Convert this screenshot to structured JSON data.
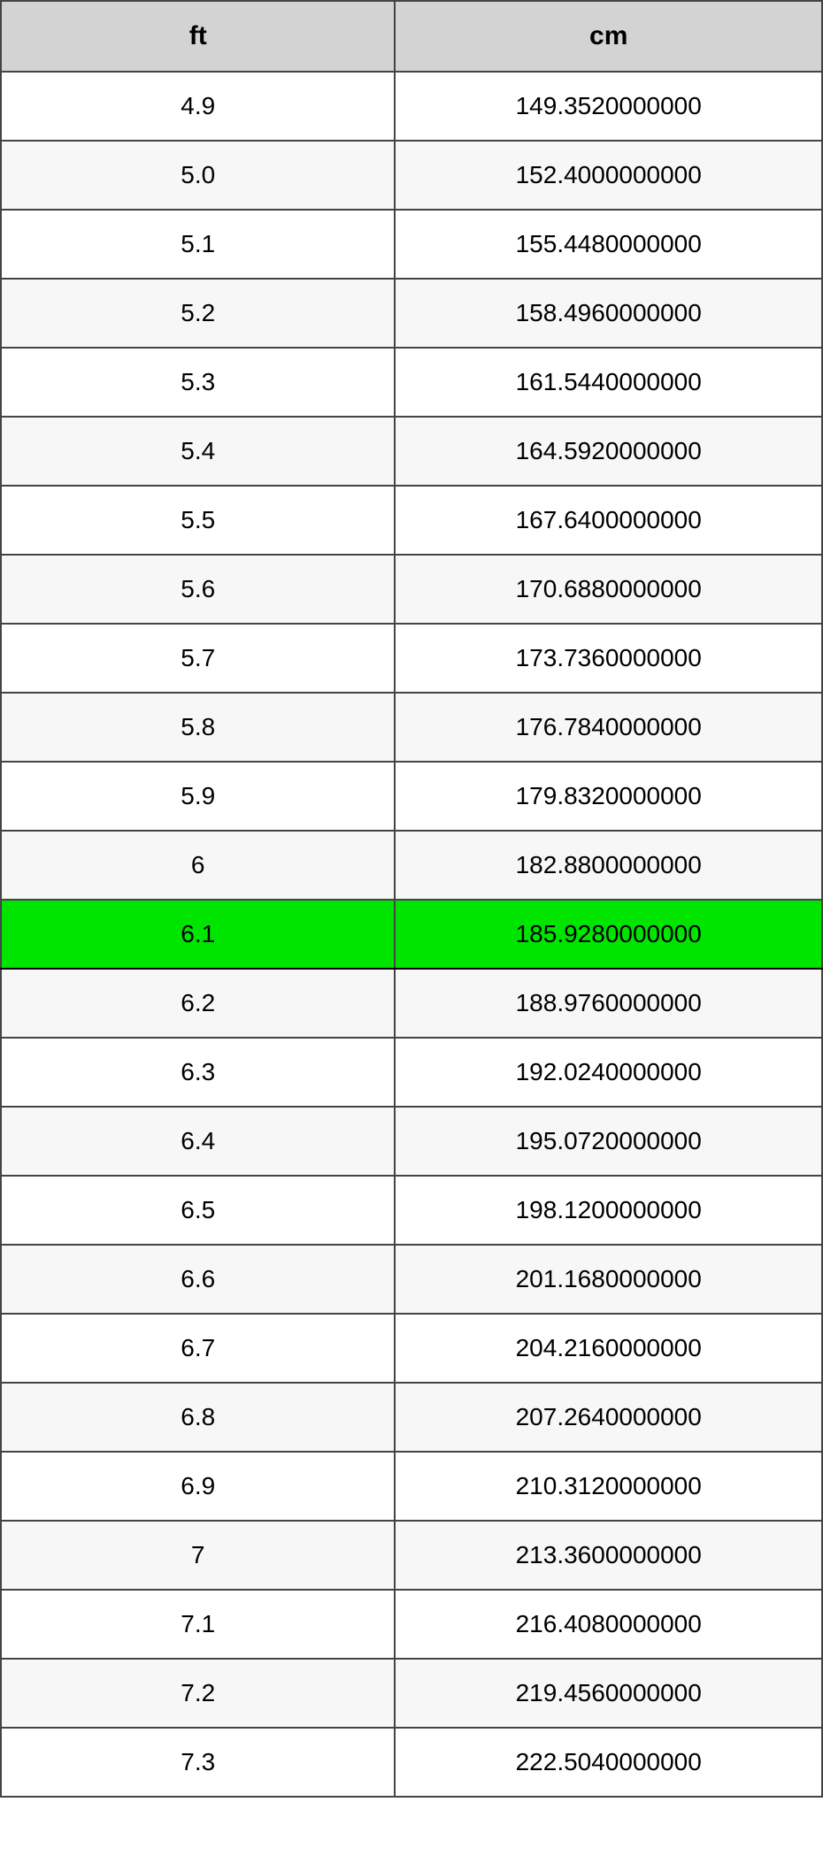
{
  "table": {
    "header": {
      "col1": "ft",
      "col2": "cm"
    },
    "header_bg": "#d3d3d3",
    "row_odd_bg": "#ffffff",
    "row_even_bg": "#f7f7f7",
    "highlight_bg": "#00e500",
    "border_color": "#444444",
    "text_color": "#000000",
    "header_fontsize": 30,
    "cell_fontsize": 28,
    "rows": [
      {
        "ft": "4.9",
        "cm": "149.3520000000",
        "highlight": false
      },
      {
        "ft": "5.0",
        "cm": "152.4000000000",
        "highlight": false
      },
      {
        "ft": "5.1",
        "cm": "155.4480000000",
        "highlight": false
      },
      {
        "ft": "5.2",
        "cm": "158.4960000000",
        "highlight": false
      },
      {
        "ft": "5.3",
        "cm": "161.5440000000",
        "highlight": false
      },
      {
        "ft": "5.4",
        "cm": "164.5920000000",
        "highlight": false
      },
      {
        "ft": "5.5",
        "cm": "167.6400000000",
        "highlight": false
      },
      {
        "ft": "5.6",
        "cm": "170.6880000000",
        "highlight": false
      },
      {
        "ft": "5.7",
        "cm": "173.7360000000",
        "highlight": false
      },
      {
        "ft": "5.8",
        "cm": "176.7840000000",
        "highlight": false
      },
      {
        "ft": "5.9",
        "cm": "179.8320000000",
        "highlight": false
      },
      {
        "ft": "6",
        "cm": "182.8800000000",
        "highlight": false
      },
      {
        "ft": "6.1",
        "cm": "185.9280000000",
        "highlight": true
      },
      {
        "ft": "6.2",
        "cm": "188.9760000000",
        "highlight": false
      },
      {
        "ft": "6.3",
        "cm": "192.0240000000",
        "highlight": false
      },
      {
        "ft": "6.4",
        "cm": "195.0720000000",
        "highlight": false
      },
      {
        "ft": "6.5",
        "cm": "198.1200000000",
        "highlight": false
      },
      {
        "ft": "6.6",
        "cm": "201.1680000000",
        "highlight": false
      },
      {
        "ft": "6.7",
        "cm": "204.2160000000",
        "highlight": false
      },
      {
        "ft": "6.8",
        "cm": "207.2640000000",
        "highlight": false
      },
      {
        "ft": "6.9",
        "cm": "210.3120000000",
        "highlight": false
      },
      {
        "ft": "7",
        "cm": "213.3600000000",
        "highlight": false
      },
      {
        "ft": "7.1",
        "cm": "216.4080000000",
        "highlight": false
      },
      {
        "ft": "7.2",
        "cm": "219.4560000000",
        "highlight": false
      },
      {
        "ft": "7.3",
        "cm": "222.5040000000",
        "highlight": false
      }
    ]
  }
}
